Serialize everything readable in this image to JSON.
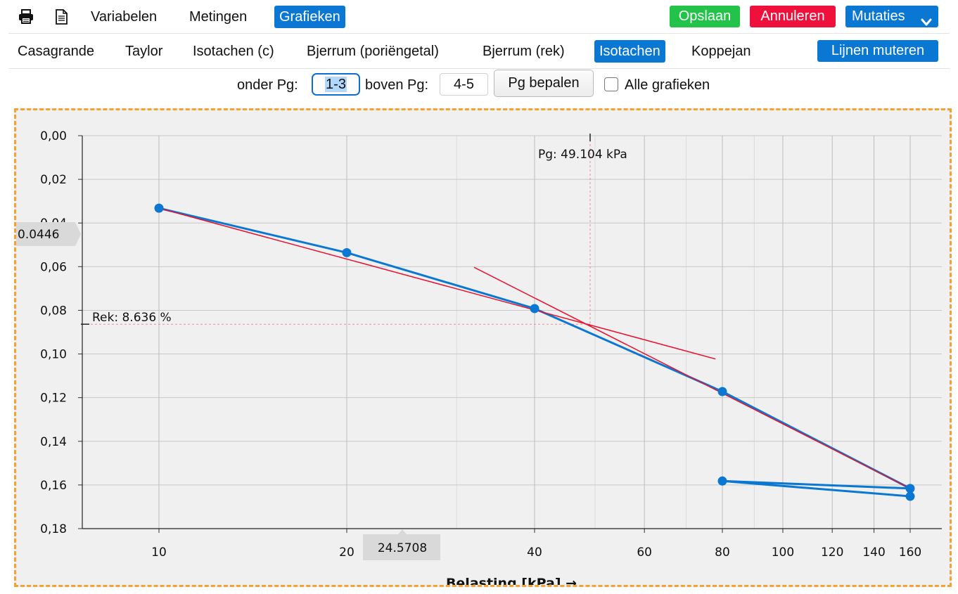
{
  "toolbar": {
    "print_icon": "printer-icon",
    "document_icon": "document-icon",
    "tabs": [
      "Variabelen",
      "Metingen",
      "Grafieken"
    ],
    "save_label": "Opslaan",
    "cancel_label": "Annuleren",
    "mutations_label": "Mutaties"
  },
  "chart_tabs": {
    "items": [
      "Casagrande",
      "Taylor",
      "Isotachen (c)",
      "Bjerrum (poriëngetal)",
      "Bjerrum (rek)",
      "Isotachen",
      "Koppejan"
    ],
    "active": "Isotachen",
    "edit_lines_label": "Lijnen muteren"
  },
  "pg": {
    "under_label": "onder Pg:",
    "under_value": "1-3",
    "above_label": "boven Pg:",
    "above_value": "4-5",
    "determine_label": "Pg bepalen",
    "all_charts_label": "Alle grafieken"
  },
  "colors": {
    "accent": "#0a78d2",
    "save": "#22c348",
    "cancel": "#f0103c",
    "fit_line": "#e8102e",
    "data_line": "#0a78d2",
    "frame": "#f5a233"
  },
  "chart_data": {
    "type": "line",
    "xlabel": "Belasting [kPa] →",
    "ylabel": "",
    "x_scale": "log",
    "xlim": [
      8,
      180
    ],
    "ylim": [
      0,
      0.18
    ],
    "y_inverted": true,
    "grid": true,
    "y_ticks": [
      "0,00",
      "0,02",
      "0,04",
      "0,06",
      "0,08",
      "0,10",
      "0,12",
      "0,14",
      "0,16",
      "0,18"
    ],
    "x_ticks": [
      "10",
      "20",
      "40",
      "60",
      "80",
      "100",
      "120",
      "140",
      "160"
    ],
    "x": [
      10,
      20,
      40,
      80,
      160,
      80,
      160
    ],
    "y": [
      0.0332,
      0.0536,
      0.0792,
      0.1172,
      0.1616,
      0.1582,
      0.1652
    ],
    "fit_lines": [
      {
        "from": [
          10,
          0.0332
        ],
        "to": [
          78,
          0.1023
        ]
      },
      {
        "from": [
          32,
          0.0603
        ],
        "to": [
          160,
          0.1616
        ]
      }
    ],
    "pg_annotation": "Pg: 49.104 kPa",
    "pg_x": 49.104,
    "rek_annotation": "Rek: 8.636 %",
    "rek_y": 0.08636,
    "cursor_y_value": "0.0446",
    "cursor_x_value": "24.5708"
  }
}
